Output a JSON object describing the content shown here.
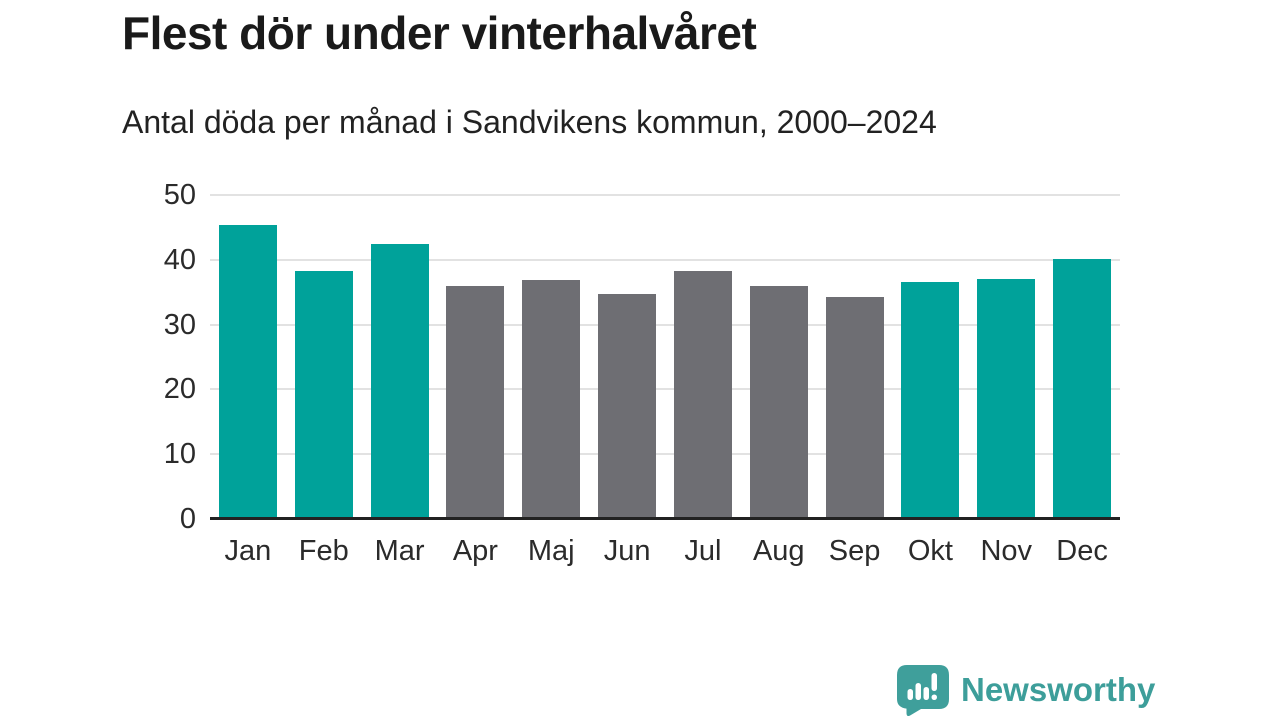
{
  "header": {
    "title": "Flest dör under vinterhalvåret",
    "subtitle": "Antal döda per månad i Sandvikens kommun, 2000–2024"
  },
  "chart_data": {
    "type": "bar",
    "title": "Flest dör under vinterhalvåret",
    "subtitle": "Antal döda per månad i Sandvikens kommun, 2000–2024",
    "categories": [
      "Jan",
      "Feb",
      "Mar",
      "Apr",
      "Maj",
      "Jun",
      "Jul",
      "Aug",
      "Sep",
      "Okt",
      "Nov",
      "Dec"
    ],
    "values": [
      45.3,
      38.3,
      42.4,
      36.0,
      36.9,
      34.8,
      38.2,
      35.9,
      34.2,
      36.6,
      37.0,
      40.1
    ],
    "bar_colors": [
      "#00a29a",
      "#00a29a",
      "#00a29a",
      "#6e6e73",
      "#6e6e73",
      "#6e6e73",
      "#6e6e73",
      "#6e6e73",
      "#6e6e73",
      "#00a29a",
      "#00a29a",
      "#00a29a"
    ],
    "xlabel": "",
    "ylabel": "",
    "ylim": [
      0,
      50
    ],
    "yticks": [
      0,
      10,
      20,
      30,
      40,
      50
    ],
    "grid": "horizontal",
    "legend": "none",
    "highlight_meaning": "teal = winter half-year months (Okt–Mar), gray = summer half-year months (Apr–Sep)"
  },
  "colors": {
    "winter_bar": "#00a29a",
    "summer_bar": "#6e6e73",
    "gridline": "#e2e2e2",
    "axis_line": "#222222",
    "brand": "#3d9e9a"
  },
  "footer": {
    "brand": "Newsworthy",
    "logo_icon": "bar-chart-speech-bubble-icon"
  }
}
